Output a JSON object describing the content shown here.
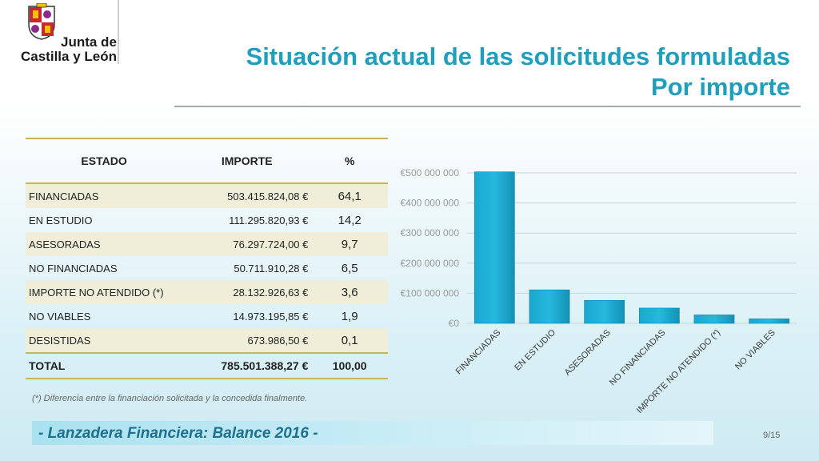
{
  "logo": {
    "line1": "Junta de",
    "line2": "Castilla y León"
  },
  "title": {
    "line1": "Situación actual de las solicitudes formuladas",
    "line2": "Por importe"
  },
  "table": {
    "headers": [
      "ESTADO",
      "IMPORTE",
      "%"
    ],
    "rows": [
      {
        "estado": "FINANCIADAS",
        "importe": "503.415.824,08 €",
        "pct": "64,1"
      },
      {
        "estado": "EN ESTUDIO",
        "importe": "111.295.820,93 €",
        "pct": "14,2"
      },
      {
        "estado": "ASESORADAS",
        "importe": "76.297.724,00 €",
        "pct": "9,7"
      },
      {
        "estado": "NO FINANCIADAS",
        "importe": "50.711.910,28 €",
        "pct": "6,5"
      },
      {
        "estado": "IMPORTE NO ATENDIDO (*)",
        "importe": "28.132.926,63 €",
        "pct": "3,6"
      },
      {
        "estado": "NO VIABLES",
        "importe": "14.973.195,85 €",
        "pct": "1,9"
      },
      {
        "estado": "DESISTIDAS",
        "importe": "673.986,50 €",
        "pct": "0,1"
      }
    ],
    "total": {
      "estado": "TOTAL",
      "importe": "785.501.388,27 €",
      "pct": "100,00"
    }
  },
  "chart_data": {
    "type": "bar",
    "categories": [
      "FINANCIADAS",
      "EN ESTUDIO",
      "ASESORADAS",
      "NO FINANCIADAS",
      "IMPORTE NO ATENDIDO (*)",
      "NO VIABLES"
    ],
    "values": [
      503415824.08,
      111295820.93,
      76297724.0,
      50711910.28,
      28132926.63,
      14973195.85
    ],
    "ylim": [
      0,
      500000000
    ],
    "yticks": [
      0,
      100000000,
      200000000,
      300000000,
      400000000,
      500000000
    ],
    "ytick_labels": [
      "€0",
      "€100 000 000",
      "€200 000 000",
      "€300 000 000",
      "€400 000 000",
      "€500 000 000"
    ],
    "grid": true,
    "bar_color": "#26b8dd"
  },
  "footnote": "(*) Diferencia entre la financiación solicitada y la concedida finalmente.",
  "footer": {
    "text": "- Lanzadera Financiera: Balance 2016 -",
    "page": "9/15"
  }
}
